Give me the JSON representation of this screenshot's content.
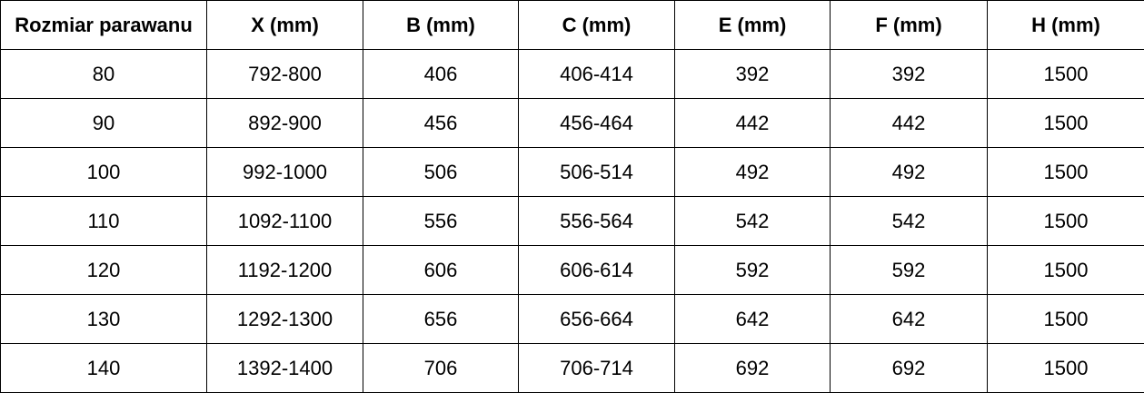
{
  "headers": [
    "Rozmiar parawanu",
    "X (mm)",
    "B (mm)",
    "C (mm)",
    "E (mm)",
    "F (mm)",
    "H (mm)"
  ],
  "rows": [
    [
      "80",
      "792-800",
      "406",
      "406-414",
      "392",
      "392",
      "1500"
    ],
    [
      "90",
      "892-900",
      "456",
      "456-464",
      "442",
      "442",
      "1500"
    ],
    [
      "100",
      "992-1000",
      "506",
      "506-514",
      "492",
      "492",
      "1500"
    ],
    [
      "110",
      "1092-1100",
      "556",
      "556-564",
      "542",
      "542",
      "1500"
    ],
    [
      "120",
      "1192-1200",
      "606",
      "606-614",
      "592",
      "592",
      "1500"
    ],
    [
      "130",
      "1292-1300",
      "656",
      "656-664",
      "642",
      "642",
      "1500"
    ],
    [
      "140",
      "1392-1400",
      "706",
      "706-714",
      "692",
      "692",
      "1500"
    ]
  ]
}
